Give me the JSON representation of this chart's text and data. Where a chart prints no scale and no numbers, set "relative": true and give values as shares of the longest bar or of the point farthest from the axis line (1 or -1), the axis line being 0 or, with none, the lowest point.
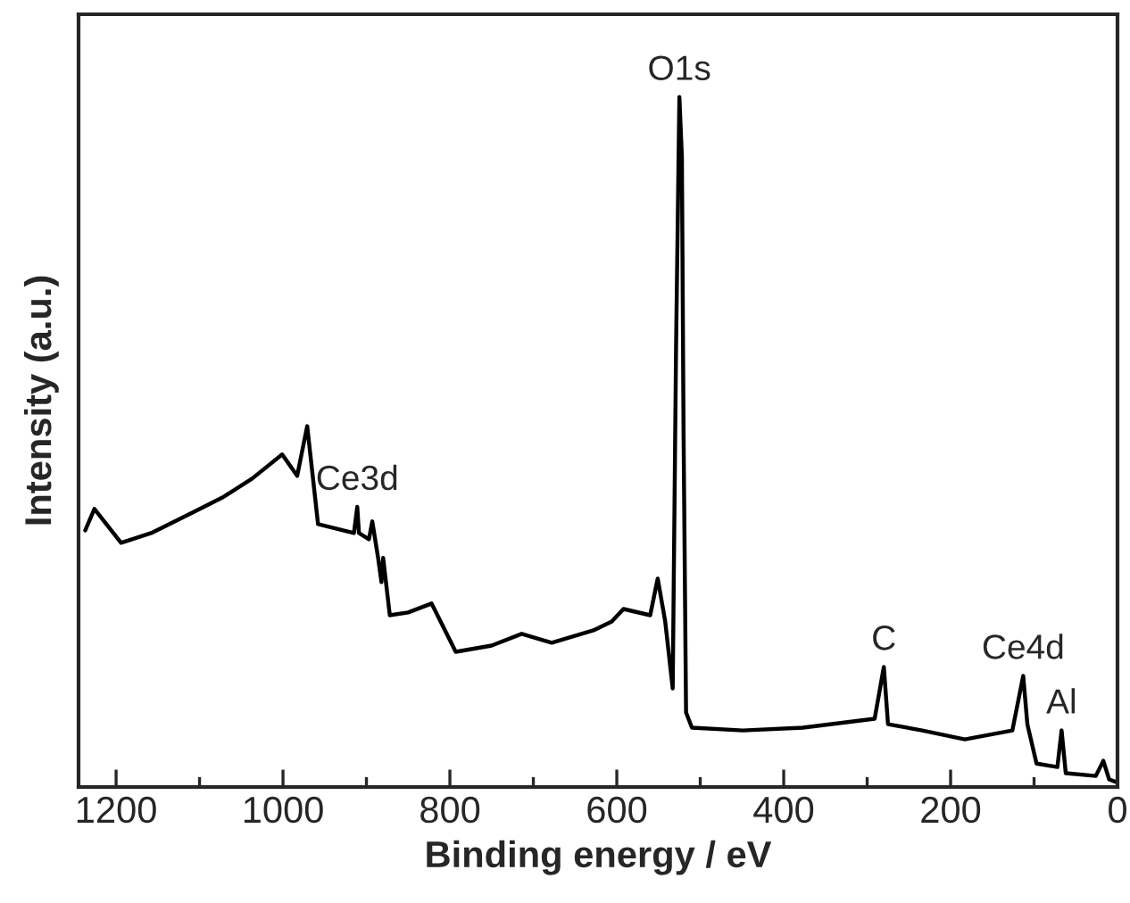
{
  "chart_data": {
    "type": "line",
    "relative": true,
    "xlabel": "Binding energy / eV",
    "ylabel": "Intensity (a.u.)",
    "xlim": [
      1245,
      0
    ],
    "xticks": [
      1200,
      {
        "value": 1100,
        "label": null
      },
      1000,
      {
        "value": 900,
        "label": null
      },
      800,
      {
        "value": 700,
        "label": null
      },
      600,
      {
        "value": 500,
        "label": null
      },
      400,
      {
        "value": 300,
        "label": null
      },
      200,
      {
        "value": 100,
        "label": null
      },
      0
    ],
    "tick_labels": "x",
    "grid": false,
    "legend": false,
    "series": [
      {
        "color": "#000000",
        "x": [
          1237,
          1226,
          1194,
          1158,
          1108,
          1072,
          1037,
          1001,
          983,
          971,
          958,
          915,
          911,
          909,
          897,
          893,
          886,
          882,
          880,
          872,
          850,
          822,
          793,
          750,
          714,
          678,
          628,
          606,
          592,
          560,
          551,
          542,
          533,
          529,
          525,
          522,
          520,
          517,
          510,
          449,
          377,
          291,
          280,
          275,
          234,
          183,
          126,
          113,
          108,
          97,
          72,
          67,
          62,
          26,
          17,
          10,
          1
        ],
        "values": [
          0.372,
          0.403,
          0.354,
          0.368,
          0.398,
          0.42,
          0.447,
          0.482,
          0.451,
          0.523,
          0.381,
          0.368,
          0.406,
          0.368,
          0.359,
          0.385,
          0.332,
          0.297,
          0.332,
          0.249,
          0.253,
          0.266,
          0.196,
          0.205,
          0.222,
          0.209,
          0.227,
          0.24,
          0.258,
          0.249,
          0.302,
          0.24,
          0.143,
          0.636,
          1.0,
          0.913,
          0.513,
          0.108,
          0.086,
          0.082,
          0.086,
          0.099,
          0.174,
          0.091,
          0.082,
          0.069,
          0.082,
          0.161,
          0.091,
          0.034,
          0.029,
          0.082,
          0.02,
          0.016,
          0.038,
          0.011,
          0.007
        ]
      }
    ],
    "annotations": [
      {
        "text": "O1s",
        "x": 525,
        "y": 1.0
      },
      {
        "text": "Ce3d",
        "x": 911,
        "y": 0.406
      },
      {
        "text": "C",
        "x": 280,
        "y": 0.174
      },
      {
        "text": "Ce4d",
        "x": 113,
        "y": 0.161
      },
      {
        "text": "Al",
        "x": 67,
        "y": 0.082
      }
    ]
  }
}
